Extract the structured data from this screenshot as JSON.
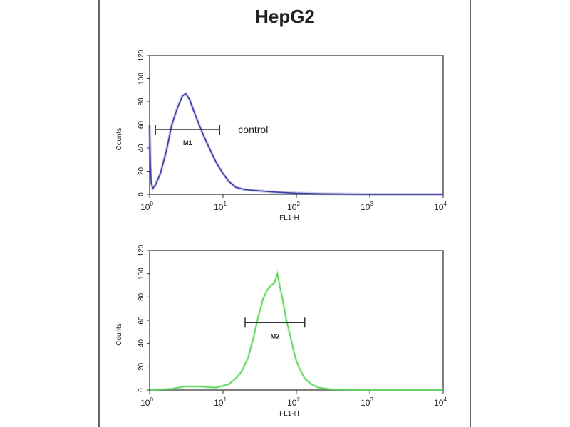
{
  "chart_data": [
    {
      "type": "line",
      "title": "HepG2",
      "xlabel": "FL1-H",
      "ylabel": "Counts",
      "xscale": "log",
      "xlim": [
        1,
        10000
      ],
      "ylim": [
        0,
        120
      ],
      "xticks": [
        "10^0",
        "10^1",
        "10^2",
        "10^3",
        "10^4"
      ],
      "yticks": [
        0,
        20,
        40,
        60,
        80,
        100,
        120
      ],
      "grid": false,
      "color": "#3a3aa8",
      "annotation": "control",
      "marker": {
        "label": "M1",
        "x": [
          1.2,
          9
        ],
        "y": 56
      },
      "x": [
        1,
        1.02,
        1.05,
        1.1,
        1.2,
        1.4,
        1.7,
        2,
        2.4,
        2.8,
        3.1,
        3.5,
        4,
        4.6,
        5.5,
        6.5,
        8,
        10,
        12,
        15,
        20,
        30,
        50,
        100,
        200,
        1000,
        10000
      ],
      "y": [
        60,
        30,
        10,
        5,
        8,
        18,
        38,
        60,
        75,
        85,
        87,
        82,
        72,
        62,
        50,
        40,
        28,
        18,
        11,
        6,
        4,
        3,
        2,
        1,
        0.5,
        0,
        0
      ]
    },
    {
      "type": "line",
      "xlabel": "FL1-H",
      "ylabel": "Counts",
      "xscale": "log",
      "xlim": [
        1,
        10000
      ],
      "ylim": [
        0,
        120
      ],
      "xticks": [
        "10^0",
        "10^1",
        "10^2",
        "10^3",
        "10^4"
      ],
      "yticks": [
        0,
        20,
        40,
        60,
        80,
        100,
        120
      ],
      "grid": false,
      "color": "#5ad65a",
      "marker": {
        "label": "M2",
        "x": [
          20,
          130
        ],
        "y": 58
      },
      "x": [
        1,
        2,
        3,
        5,
        8,
        12,
        15,
        18,
        22,
        26,
        30,
        35,
        40,
        45,
        50,
        55,
        60,
        65,
        72,
        80,
        90,
        100,
        115,
        130,
        160,
        200,
        300,
        1000,
        10000
      ],
      "y": [
        0,
        1,
        3,
        3,
        2,
        5,
        10,
        16,
        28,
        45,
        62,
        78,
        86,
        90,
        92,
        100,
        88,
        78,
        62,
        50,
        36,
        25,
        16,
        10,
        5,
        2,
        0.5,
        0,
        0
      ]
    }
  ]
}
